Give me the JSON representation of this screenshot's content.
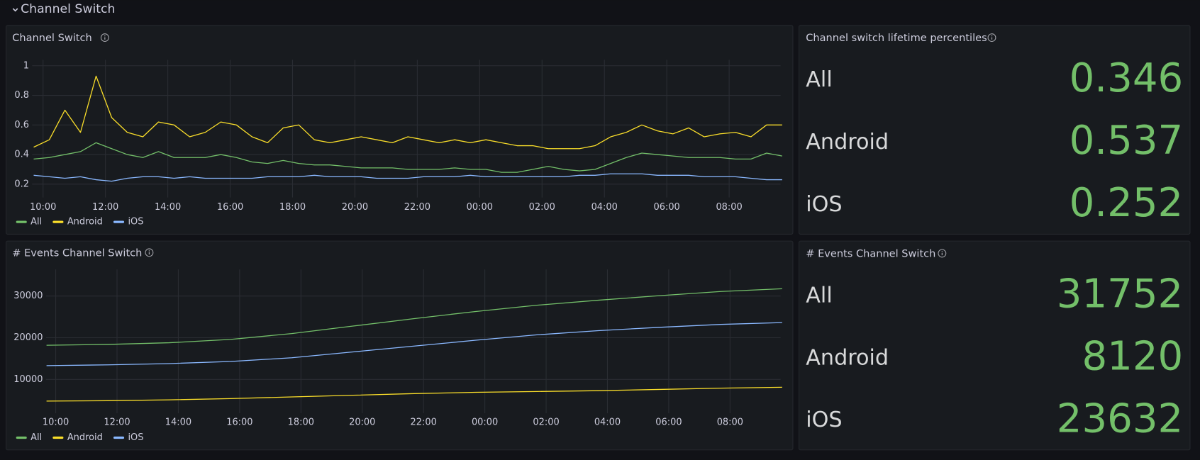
{
  "section_title": "Channel Switch",
  "chart_data": [
    {
      "type": "line",
      "title": "Channel Switch",
      "grid": true,
      "x": [
        9.7,
        10.2,
        10.7,
        11.2,
        11.7,
        12.2,
        12.7,
        13.2,
        13.7,
        14.2,
        14.7,
        15.2,
        15.7,
        16.2,
        16.7,
        17.2,
        17.7,
        18.2,
        18.7,
        19.2,
        19.7,
        20.2,
        20.7,
        21.2,
        21.7,
        22.2,
        22.7,
        23.2,
        23.7,
        24.2,
        24.7,
        25.2,
        25.7,
        26.2,
        26.7,
        27.2,
        27.7,
        28.2,
        28.7,
        29.2,
        29.7,
        30.2,
        30.7,
        31.2,
        31.7,
        32.2,
        32.7,
        33.2,
        33.7
      ],
      "xlim": [
        9.65,
        33.65
      ],
      "xticks": [
        {
          "value": 10,
          "label": "10:00"
        },
        {
          "value": 12,
          "label": "12:00"
        },
        {
          "value": 14,
          "label": "14:00"
        },
        {
          "value": 16,
          "label": "16:00"
        },
        {
          "value": 18,
          "label": "18:00"
        },
        {
          "value": 20,
          "label": "20:00"
        },
        {
          "value": 22,
          "label": "22:00"
        },
        {
          "value": 24,
          "label": "00:00"
        },
        {
          "value": 26,
          "label": "02:00"
        },
        {
          "value": 28,
          "label": "04:00"
        },
        {
          "value": 30,
          "label": "06:00"
        },
        {
          "value": 32,
          "label": "08:00"
        }
      ],
      "ylim": [
        0.11,
        1.04
      ],
      "yticks": [
        0.2,
        0.4,
        0.6,
        0.8,
        1
      ],
      "series": [
        {
          "name": "All",
          "color": "#73bf69",
          "values": [
            0.37,
            0.38,
            0.4,
            0.42,
            0.48,
            0.44,
            0.4,
            0.38,
            0.42,
            0.38,
            0.38,
            0.38,
            0.4,
            0.38,
            0.35,
            0.34,
            0.36,
            0.34,
            0.33,
            0.33,
            0.32,
            0.31,
            0.31,
            0.31,
            0.3,
            0.3,
            0.3,
            0.31,
            0.3,
            0.3,
            0.28,
            0.28,
            0.3,
            0.32,
            0.3,
            0.29,
            0.3,
            0.34,
            0.38,
            0.41,
            0.4,
            0.39,
            0.38,
            0.38,
            0.38,
            0.37,
            0.37,
            0.41,
            0.39
          ]
        },
        {
          "name": "Android",
          "color": "#fade2a",
          "values": [
            0.45,
            0.5,
            0.7,
            0.55,
            0.93,
            0.65,
            0.55,
            0.52,
            0.62,
            0.6,
            0.52,
            0.55,
            0.62,
            0.6,
            0.52,
            0.48,
            0.58,
            0.6,
            0.5,
            0.48,
            0.5,
            0.52,
            0.5,
            0.48,
            0.52,
            0.5,
            0.48,
            0.5,
            0.48,
            0.5,
            0.48,
            0.46,
            0.46,
            0.44,
            0.44,
            0.44,
            0.46,
            0.52,
            0.55,
            0.6,
            0.56,
            0.54,
            0.58,
            0.52,
            0.54,
            0.55,
            0.52,
            0.6,
            0.6
          ]
        },
        {
          "name": "iOS",
          "color": "#8ab8ff",
          "values": [
            0.26,
            0.25,
            0.24,
            0.25,
            0.23,
            0.22,
            0.24,
            0.25,
            0.25,
            0.24,
            0.25,
            0.24,
            0.24,
            0.24,
            0.24,
            0.25,
            0.25,
            0.25,
            0.26,
            0.25,
            0.25,
            0.25,
            0.24,
            0.24,
            0.24,
            0.25,
            0.25,
            0.25,
            0.26,
            0.25,
            0.25,
            0.25,
            0.25,
            0.25,
            0.25,
            0.26,
            0.26,
            0.27,
            0.27,
            0.27,
            0.26,
            0.26,
            0.26,
            0.25,
            0.25,
            0.25,
            0.24,
            0.23,
            0.23
          ]
        }
      ]
    },
    {
      "type": "line",
      "title": "# Events Channel Switch",
      "grid": true,
      "x": [
        9.7,
        11.7,
        13.7,
        15.7,
        17.7,
        19.7,
        21.7,
        23.7,
        25.7,
        27.7,
        29.7,
        31.7,
        33.7
      ],
      "xlim": [
        9.68,
        33.65
      ],
      "xticks": [
        {
          "value": 10,
          "label": "10:00"
        },
        {
          "value": 12,
          "label": "12:00"
        },
        {
          "value": 14,
          "label": "14:00"
        },
        {
          "value": 16,
          "label": "16:00"
        },
        {
          "value": 18,
          "label": "18:00"
        },
        {
          "value": 20,
          "label": "20:00"
        },
        {
          "value": 22,
          "label": "22:00"
        },
        {
          "value": 24,
          "label": "00:00"
        },
        {
          "value": 26,
          "label": "02:00"
        },
        {
          "value": 28,
          "label": "04:00"
        },
        {
          "value": 30,
          "label": "06:00"
        },
        {
          "value": 32,
          "label": "08:00"
        }
      ],
      "ylim": [
        1900,
        36400
      ],
      "yticks": [
        10000,
        20000,
        30000
      ],
      "series": [
        {
          "name": "All",
          "color": "#73bf69",
          "values": [
            18200,
            18400,
            18800,
            19600,
            21000,
            22800,
            24600,
            26300,
            27800,
            29000,
            30100,
            31100,
            31752
          ]
        },
        {
          "name": "Android",
          "color": "#fade2a",
          "values": [
            4800,
            4900,
            5100,
            5400,
            5800,
            6200,
            6600,
            6900,
            7100,
            7300,
            7600,
            7900,
            8120
          ]
        },
        {
          "name": "iOS",
          "color": "#8ab8ff",
          "values": [
            13300,
            13500,
            13800,
            14300,
            15200,
            16600,
            18000,
            19400,
            20700,
            21700,
            22500,
            23200,
            23632
          ]
        }
      ]
    }
  ],
  "stat_panels": [
    {
      "title": "Channel switch lifetime percentiles",
      "color": "#73bf69",
      "rows": [
        {
          "label": "All",
          "value": 0.346
        },
        {
          "label": "Android",
          "value": 0.537
        },
        {
          "label": "iOS",
          "value": 0.252
        }
      ]
    },
    {
      "title": "# Events Channel Switch",
      "color": "#73bf69",
      "rows": [
        {
          "label": "All",
          "value": 31752
        },
        {
          "label": "Android",
          "value": 8120
        },
        {
          "label": "iOS",
          "value": 23632
        }
      ]
    }
  ]
}
